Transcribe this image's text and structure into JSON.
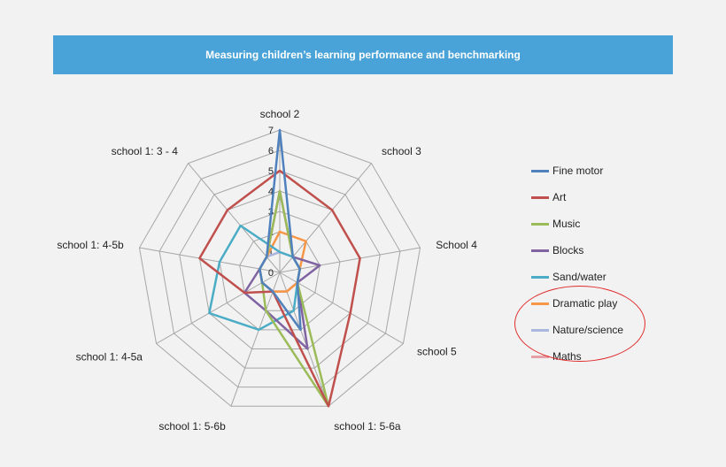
{
  "header": {
    "title": "Measuring children’s learning performance and benchmarking"
  },
  "chart_data": {
    "type": "radar",
    "title": "Measuring children’s learning performance and benchmarking",
    "categories": [
      "school 2",
      "school 3",
      "School 4",
      "school 5",
      "school 1: 5-6a",
      "school 1: 5-6b",
      "school 1: 4-5a",
      "school 1: 4-5b",
      "school 1: 3 - 4"
    ],
    "r_ticks": [
      "0",
      "1",
      "2",
      "3",
      "4",
      "5",
      "6",
      "7"
    ],
    "rlim": [
      0,
      7
    ],
    "grid": true,
    "legend_position": "right",
    "annotation": "red ellipse around Dramatic play, Nature/science, Maths",
    "series": [
      {
        "name": "Fine motor",
        "color": "#4f81bd",
        "values": [
          7,
          1,
          1,
          1,
          3,
          1,
          1,
          1,
          1
        ]
      },
      {
        "name": "Art",
        "color": "#c0504d",
        "values": [
          5,
          4,
          4,
          4,
          7,
          1,
          2,
          4,
          4
        ]
      },
      {
        "name": "Music",
        "color": "#9bbb59",
        "values": [
          4,
          1,
          1,
          1,
          7,
          2,
          1,
          1,
          1
        ]
      },
      {
        "name": "Blocks",
        "color": "#8064a2",
        "values": [
          4,
          1,
          2,
          1,
          4,
          2,
          2,
          1,
          1
        ]
      },
      {
        "name": "Sand/water",
        "color": "#4bacc6",
        "values": [
          1,
          1,
          1,
          1,
          2,
          3,
          4,
          3,
          3
        ]
      },
      {
        "name": "Dramatic play",
        "color": "#f79646",
        "values": [
          2,
          2,
          1,
          1,
          1,
          1,
          1,
          1,
          1
        ]
      },
      {
        "name": "Nature/science",
        "color": "#a9b7de",
        "values": [
          1,
          1,
          1,
          1,
          1,
          1,
          1,
          1,
          1
        ]
      },
      {
        "name": "Maths",
        "color": "#e6a0a8",
        "values": [
          1,
          1,
          1,
          1,
          1,
          1,
          1,
          1,
          1
        ]
      }
    ]
  }
}
